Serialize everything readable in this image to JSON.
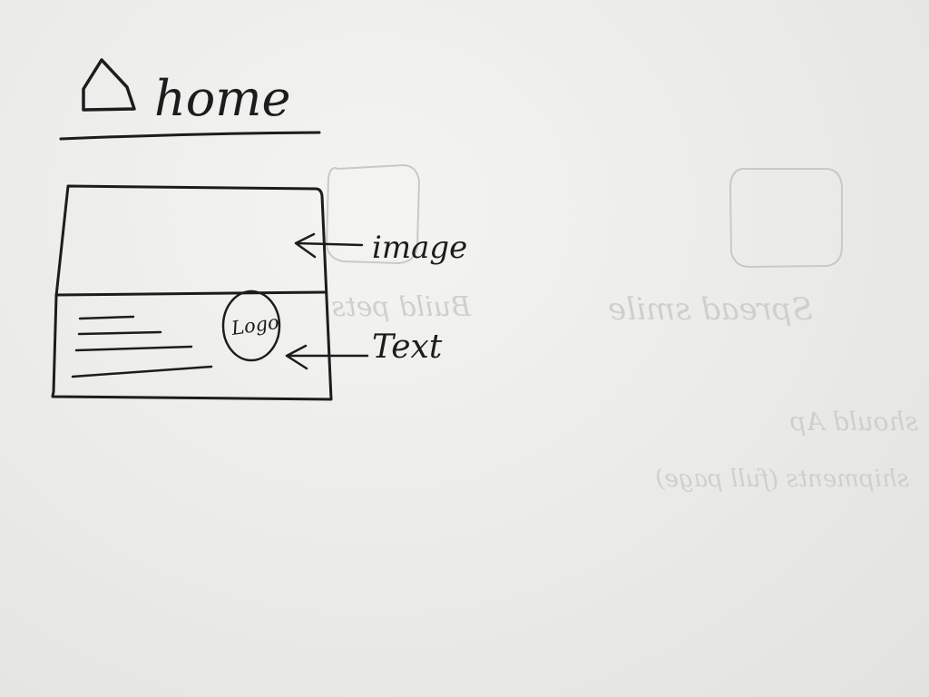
{
  "title": {
    "text": "home",
    "icon": "house-icon"
  },
  "wireframe": {
    "labels": {
      "image": "image",
      "text": "Text",
      "logo": "Logo"
    }
  },
  "show_through": {
    "text_1": "Spread smile",
    "text_2": "Build pets",
    "text_3": "should Ap",
    "text_4": "shipments (full page)"
  }
}
